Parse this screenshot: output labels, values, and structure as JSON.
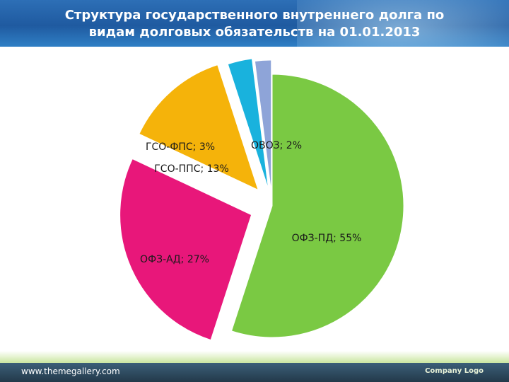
{
  "slide": {
    "title": "Структура государственного внутреннего долга по\nвидам долговых обязательств на 01.01.2013",
    "footer_url": "www.themegallery.com",
    "footer_logo": "Company Logo"
  },
  "chart_data": {
    "type": "pie",
    "title": "%",
    "slices": [
      {
        "label": "ОФЗ-ПД",
        "value": 55,
        "color": "#7ac943",
        "data_label": "ОФЗ-ПД; 55%"
      },
      {
        "label": "ОФЗ-АД",
        "value": 27,
        "color": "#e8177a",
        "data_label": "ОФЗ-АД; 27%"
      },
      {
        "label": "ГСО-ППС",
        "value": 13,
        "color": "#f5b30a",
        "data_label": "ГСО-ППС; 13%"
      },
      {
        "label": "ГСО-ФПС",
        "value": 3,
        "color": "#19b2dd",
        "data_label": "ГСО-ФПС; 3%"
      },
      {
        "label": "ОВОЗ",
        "value": 2,
        "color": "#8ea4d8",
        "data_label": "ОВОЗ; 2%"
      }
    ]
  }
}
